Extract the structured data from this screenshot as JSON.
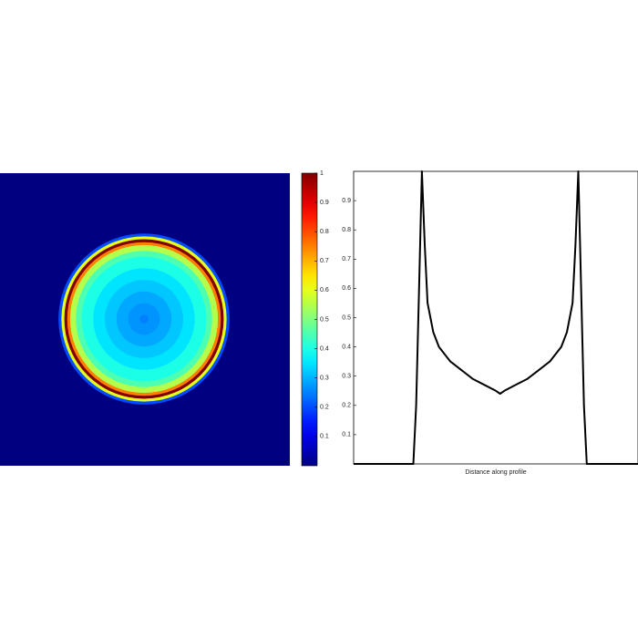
{
  "chart_data": [
    {
      "type": "heatmap",
      "clim": [
        0,
        1
      ],
      "cticks": [
        0.1,
        0.2,
        0.3,
        0.4,
        0.5,
        0.6,
        0.7,
        0.8,
        0.9,
        1
      ]
    },
    {
      "type": "line",
      "x_label": "Distance along profile",
      "x": [
        0,
        21,
        22,
        23,
        24,
        25,
        26,
        28,
        30,
        34,
        38,
        42,
        46,
        50,
        51.5,
        53,
        57,
        61,
        65,
        69,
        73,
        75,
        77,
        78,
        79,
        80,
        81,
        82,
        100
      ],
      "values": [
        0,
        0,
        0.2,
        0.6,
        1,
        0.75,
        0.55,
        0.45,
        0.4,
        0.35,
        0.32,
        0.29,
        0.27,
        0.25,
        0.24,
        0.25,
        0.27,
        0.29,
        0.32,
        0.35,
        0.4,
        0.45,
        0.55,
        0.75,
        1,
        0.6,
        0.2,
        0,
        0
      ],
      "color": "#000000",
      "xlim": [
        0,
        100
      ],
      "ylim": [
        0,
        1
      ],
      "yticks": [
        0.1,
        0.2,
        0.3,
        0.4,
        0.5,
        0.6,
        0.7,
        0.8,
        0.9
      ]
    }
  ]
}
